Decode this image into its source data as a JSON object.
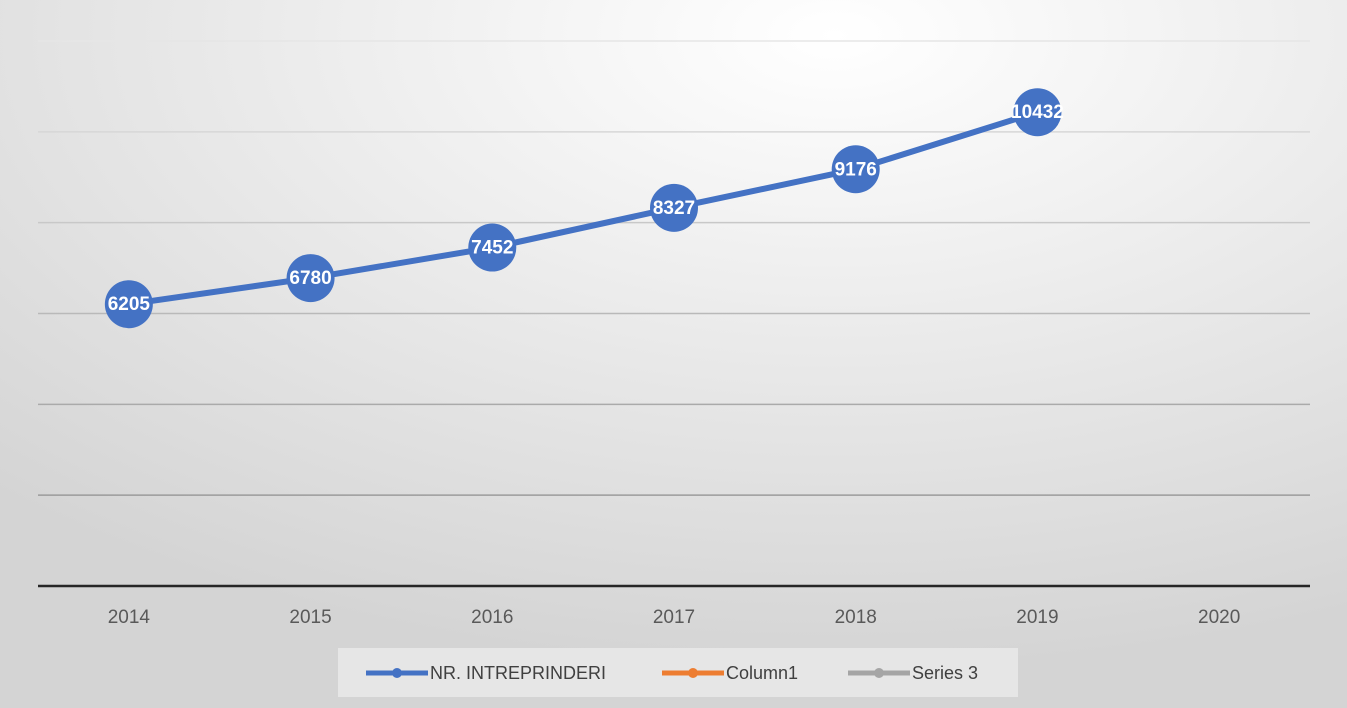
{
  "chart_data": {
    "type": "line",
    "categories": [
      "2014",
      "2015",
      "2016",
      "2017",
      "2018",
      "2019",
      "2020"
    ],
    "series": [
      {
        "name": "NR. INTREPRINDERI",
        "color": "#4472c4",
        "values": [
          6205,
          6780,
          7452,
          8327,
          9176,
          10432,
          null
        ]
      },
      {
        "name": "Column1",
        "color": "#ed7d31",
        "values": [
          null,
          null,
          null,
          null,
          null,
          null,
          null
        ]
      },
      {
        "name": "Series 3",
        "color": "#a5a5a5",
        "values": [
          null,
          null,
          null,
          null,
          null,
          null,
          null
        ]
      }
    ],
    "ylim": [
      0,
      12000
    ],
    "yticks": [
      0,
      2000,
      4000,
      6000,
      8000,
      10000,
      12000
    ],
    "grid": true,
    "legend": "bottom"
  }
}
